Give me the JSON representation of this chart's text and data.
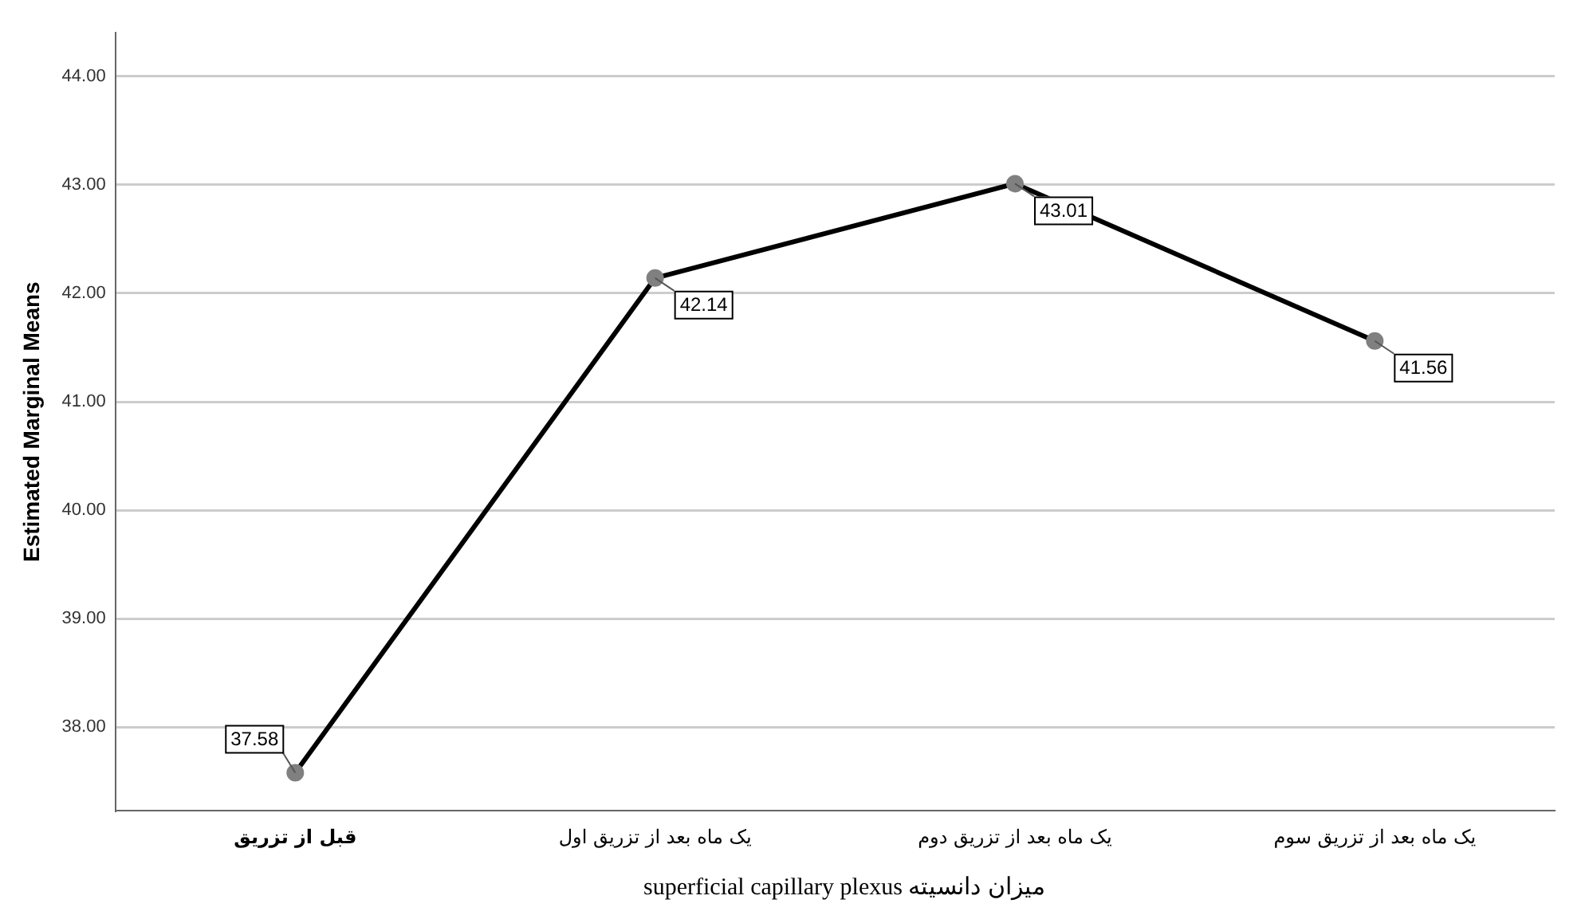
{
  "chart_data": {
    "type": "line",
    "xlabel": "میزان دانسیته superficial capillary plexus",
    "ylabel": "Estimated Marginal Means",
    "categories": [
      "قبل از تزریق",
      "یک ماه بعد از تزریق اول",
      "یک ماه بعد از تزریق دوم",
      "یک ماه بعد از تزریق سوم"
    ],
    "series": [
      {
        "color": "#000000",
        "values": [
          37.58,
          42.14,
          43.01,
          41.56
        ]
      }
    ],
    "ylim": [
      37.23,
      44.4
    ],
    "yticks": [
      {
        "value": 38,
        "label": "38.00"
      },
      {
        "value": 39,
        "label": "39.00"
      },
      {
        "value": 40,
        "label": "40.00"
      },
      {
        "value": 41,
        "label": "41.00"
      },
      {
        "value": 42,
        "label": "42.00"
      },
      {
        "value": 43,
        "label": "43.00"
      },
      {
        "value": 44,
        "label": "44.00"
      }
    ],
    "grid": "y",
    "marker": "circle",
    "line_style": "solid",
    "data_labels": true,
    "legend": false
  }
}
